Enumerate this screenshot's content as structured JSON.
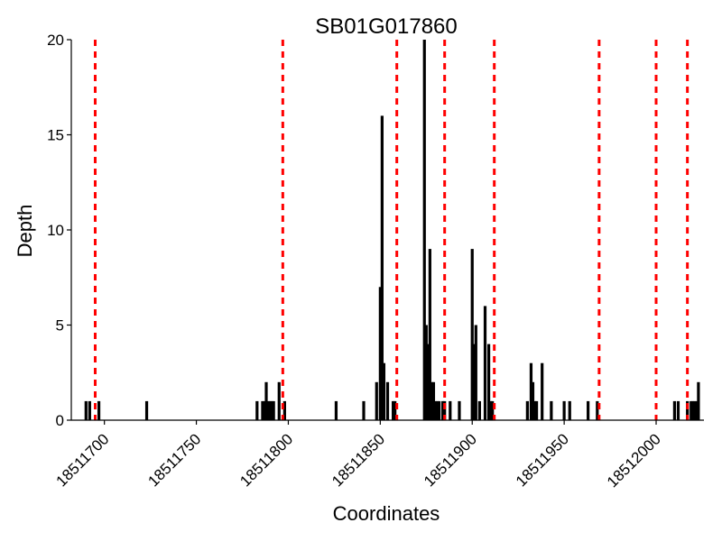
{
  "chart_data": {
    "type": "bar",
    "title": "SB01G017860",
    "xlabel": "Coordinates",
    "ylabel": "Depth",
    "xlim": [
      18511682,
      18512026
    ],
    "ylim": [
      0,
      20
    ],
    "x_ticks": [
      18511700,
      18511750,
      18511800,
      18511850,
      18511900,
      18511950,
      18512000
    ],
    "y_ticks": [
      0,
      5,
      10,
      15,
      20
    ],
    "series": [
      {
        "x": [
          18511690,
          18511692,
          18511697,
          18511723,
          18511783,
          18511786,
          18511787,
          18511788,
          18511789,
          18511790,
          18511791,
          18511792,
          18511795,
          18511798,
          18511826,
          18511841,
          18511848,
          18511850,
          18511851,
          18511852,
          18511854,
          18511857,
          18511858,
          18511874,
          18511875,
          18511876,
          18511877,
          18511878,
          18511879,
          18511880,
          18511881,
          18511882,
          18511884,
          18511885,
          18511888,
          18511893,
          18511900,
          18511901,
          18511902,
          18511904,
          18511907,
          18511909,
          18511910,
          18511911,
          18511930,
          18511932,
          18511933,
          18511934,
          18511935,
          18511938,
          18511943,
          18511950,
          18511953,
          18511963,
          18511968,
          18512010,
          18512012,
          18512017,
          18512019,
          18512020,
          18512021,
          18512022,
          18512023
        ],
        "values": [
          1,
          1,
          1,
          1,
          1,
          1,
          1,
          2,
          1,
          1,
          1,
          1,
          2,
          1,
          1,
          1,
          2,
          7,
          16,
          3,
          2,
          1,
          1,
          20,
          5,
          4,
          9,
          2,
          2,
          1,
          1,
          1,
          1,
          1,
          1,
          1,
          9,
          4,
          5,
          1,
          6,
          4,
          1,
          1,
          1,
          3,
          2,
          1,
          1,
          3,
          1,
          1,
          1,
          1,
          1,
          1,
          1,
          1,
          1,
          1,
          1,
          1,
          2
        ]
      }
    ],
    "markers": [
      18511695,
      18511797,
      18511859,
      18511885,
      18511912,
      18511969,
      18512000,
      18512017
    ],
    "grid": false,
    "colors": {
      "bars": "#000000",
      "markers": "#ff0000"
    }
  }
}
